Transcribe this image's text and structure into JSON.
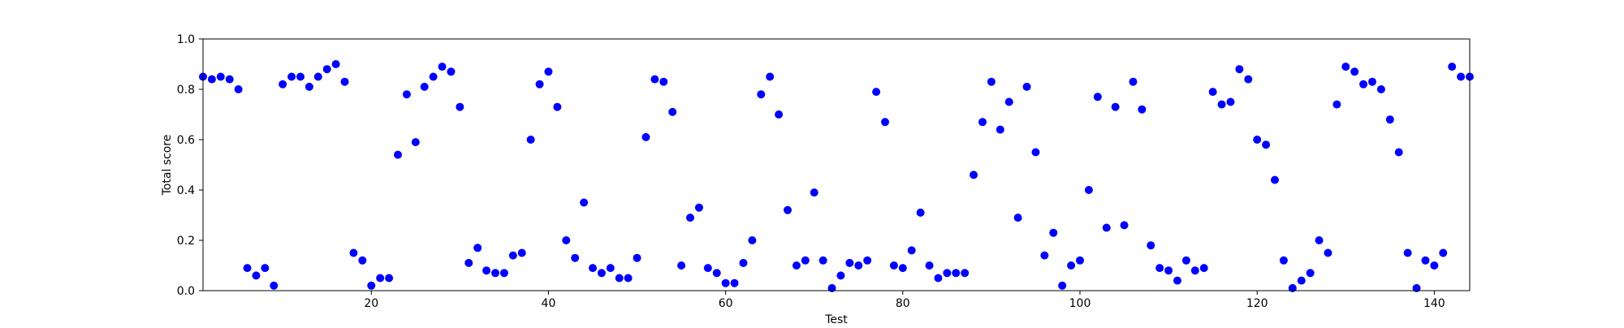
{
  "chart_data": {
    "type": "scatter",
    "title": "",
    "xlabel": "Test",
    "ylabel": "Total score",
    "xlim": [
      1,
      144
    ],
    "ylim": [
      0.0,
      1.0
    ],
    "x_ticks": [
      20,
      40,
      60,
      80,
      100,
      120,
      140
    ],
    "y_ticks": [
      0.0,
      0.2,
      0.4,
      0.6,
      0.8,
      1.0
    ],
    "x_tick_labels": [
      "20",
      "40",
      "60",
      "80",
      "100",
      "120",
      "140"
    ],
    "y_tick_labels": [
      "0.0",
      "0.2",
      "0.4",
      "0.6",
      "0.8",
      "1.0"
    ],
    "grid": false,
    "legend": "none",
    "marker_color": "#0000ff",
    "series": [
      {
        "x": [
          1,
          2,
          3,
          4,
          5,
          6,
          7,
          8,
          9,
          10,
          11,
          12,
          13,
          14,
          15,
          16,
          17,
          18,
          19,
          20,
          21,
          22,
          23,
          24,
          25,
          26,
          27,
          28,
          29,
          30,
          31,
          32,
          33,
          34,
          35,
          36,
          37,
          38,
          39,
          40,
          41,
          42,
          43,
          44,
          45,
          46,
          47,
          48,
          49,
          50,
          51,
          52,
          53,
          54,
          55,
          56,
          57,
          58,
          59,
          60,
          61,
          62,
          63,
          64,
          65,
          66,
          67,
          68,
          69,
          70,
          71,
          72,
          73,
          74,
          75,
          76,
          77,
          78,
          79,
          80,
          81,
          82,
          83,
          84,
          85,
          86,
          87,
          88,
          89,
          90,
          91,
          92,
          93,
          94,
          95,
          96,
          97,
          98,
          99,
          100,
          101,
          102,
          103,
          104,
          105,
          106,
          107,
          108,
          109,
          110,
          111,
          112,
          113,
          114,
          115,
          116,
          117,
          118,
          119,
          120,
          121,
          122,
          123,
          124,
          125,
          126,
          127,
          128,
          129,
          130,
          131,
          132,
          133,
          134,
          135,
          136,
          137,
          138,
          139,
          140,
          141,
          142,
          143,
          144
        ],
        "y": [
          0.85,
          0.84,
          0.85,
          0.84,
          0.8,
          0.09,
          0.06,
          0.09,
          0.02,
          0.82,
          0.85,
          0.85,
          0.81,
          0.85,
          0.88,
          0.9,
          0.83,
          0.15,
          0.12,
          0.02,
          0.05,
          0.05,
          0.54,
          0.78,
          0.59,
          0.81,
          0.85,
          0.89,
          0.87,
          0.73,
          0.11,
          0.17,
          0.08,
          0.07,
          0.07,
          0.14,
          0.15,
          0.6,
          0.82,
          0.87,
          0.73,
          0.2,
          0.13,
          0.35,
          0.09,
          0.07,
          0.09,
          0.05,
          0.05,
          0.13,
          0.61,
          0.84,
          0.83,
          0.71,
          0.1,
          0.29,
          0.33,
          0.09,
          0.07,
          0.03,
          0.03,
          0.11,
          0.2,
          0.78,
          0.85,
          0.7,
          0.32,
          0.1,
          0.12,
          0.39,
          0.12,
          0.01,
          0.06,
          0.11,
          0.1,
          0.12,
          0.79,
          0.67,
          0.1,
          0.09,
          0.16,
          0.31,
          0.1,
          0.05,
          0.07,
          0.07,
          0.07,
          0.46,
          0.67,
          0.83,
          0.64,
          0.75,
          0.29,
          0.81,
          0.55,
          0.14,
          0.23,
          0.02,
          0.1,
          0.12,
          0.4,
          0.77,
          0.25,
          0.73,
          0.26,
          0.83,
          0.72,
          0.18,
          0.09,
          0.08,
          0.04,
          0.12,
          0.08,
          0.09,
          0.79,
          0.74,
          0.75,
          0.88,
          0.84,
          0.6,
          0.58,
          0.44,
          0.12,
          0.01,
          0.04,
          0.07,
          0.2,
          0.15,
          0.74,
          0.89,
          0.87,
          0.82,
          0.83,
          0.8,
          0.68,
          0.55,
          0.15,
          0.01,
          0.12,
          0.1,
          0.15,
          0.89,
          0.85,
          0.85
        ]
      }
    ]
  }
}
